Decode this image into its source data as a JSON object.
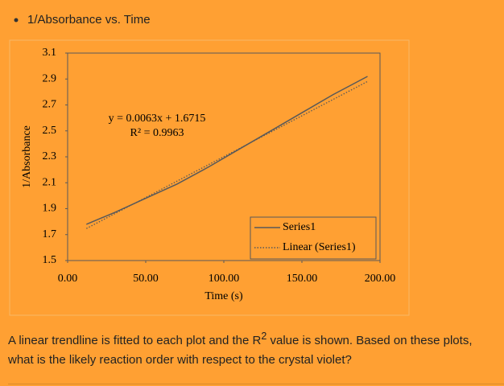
{
  "bullet_title": "1/Absorbance vs. Time",
  "chart_data": {
    "type": "line",
    "xlabel": "Time (s)",
    "ylabel": "1/Absorbance",
    "xlim": [
      0,
      200
    ],
    "xticks": [
      {
        "value": 0,
        "label": "0.00"
      },
      {
        "value": 50,
        "label": "50.00"
      },
      {
        "value": 100,
        "label": "100.00"
      },
      {
        "value": 150,
        "label": "150.00"
      },
      {
        "value": 200,
        "label": "200.00"
      }
    ],
    "ylim": [
      1.5,
      3.1
    ],
    "yticks": [
      1.5,
      1.7,
      1.9,
      2.1,
      2.3,
      2.5,
      2.7,
      2.9,
      3.1
    ],
    "series": [
      {
        "name": "Series1",
        "color": "#595959",
        "dash": "solid",
        "x": [
          12,
          30,
          50,
          70,
          90,
          110,
          130,
          150,
          170,
          192
        ],
        "values": [
          1.78,
          1.87,
          1.98,
          2.09,
          2.22,
          2.36,
          2.5,
          2.64,
          2.78,
          2.92
        ]
      },
      {
        "name": "Linear (Series1)",
        "color": "#595959",
        "dash": "dotted",
        "x": [
          12,
          192
        ],
        "values": [
          1.747,
          2.881
        ]
      }
    ],
    "annotations": [
      "y = 0.0063x + 1.6715",
      "R² = 0.9963"
    ],
    "legend": "lower right"
  },
  "question": {
    "before": "A linear trendline is fitted to each plot and the R",
    "superscript": "2",
    "after": " value is shown. Based on these plots, what is the likely reaction order with respect to the crystal violet?"
  }
}
